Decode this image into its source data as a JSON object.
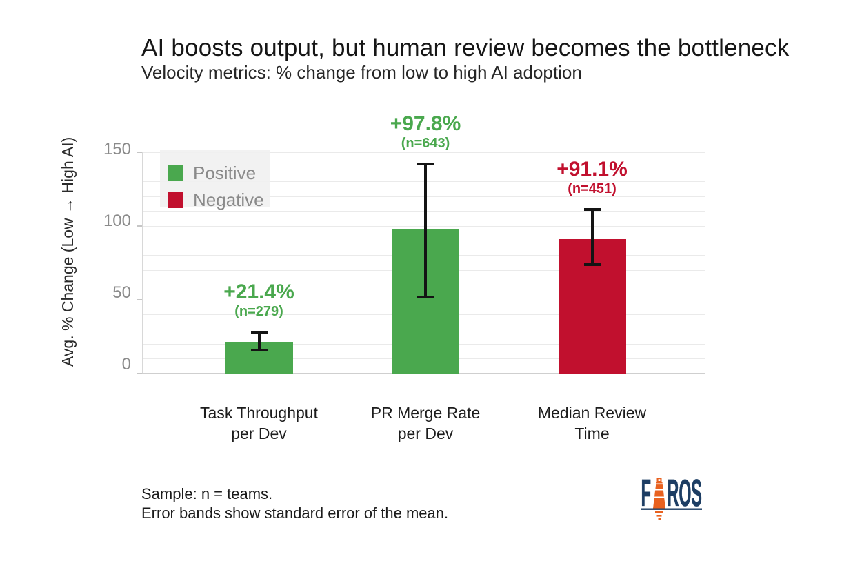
{
  "chart_data": {
    "type": "bar",
    "title": "AI boosts output, but human review becomes the bottleneck",
    "subtitle": "Velocity metrics: % change from low to high AI adoption",
    "ylabel": "Avg. % Change (Low → High AI)",
    "ylim": [
      0,
      150
    ],
    "yticks": [
      0,
      50,
      100,
      150
    ],
    "grid": "horizontal, minor every 10",
    "legend_position": "top-left",
    "legend": [
      {
        "label": "Positive",
        "color": "#4aa84e"
      },
      {
        "label": "Negative",
        "color": "#c1102e"
      }
    ],
    "bars": [
      {
        "category": "Task Throughput per Dev",
        "category_lines": [
          "Task Throughput",
          "per Dev"
        ],
        "value": 21.4,
        "label": "+21.4%",
        "n_label": "(n=279)",
        "n": 279,
        "sentiment": "positive",
        "err_low": 16,
        "err_high": 28
      },
      {
        "category": "PR Merge Rate per Dev",
        "category_lines": [
          "PR Merge Rate",
          "per Dev"
        ],
        "value": 97.8,
        "label": "+97.8%",
        "n_label": "(n=643)",
        "n": 643,
        "sentiment": "positive",
        "err_low": 52,
        "err_high": 142
      },
      {
        "category": "Median Review Time",
        "category_lines": [
          "Median Review",
          "Time"
        ],
        "value": 91.1,
        "label": "+91.1%",
        "n_label": "(n=451)",
        "n": 451,
        "sentiment": "negative",
        "err_low": 74,
        "err_high": 111
      }
    ],
    "colors": {
      "positive": "#4aa84e",
      "negative": "#c1102e"
    },
    "footnote_lines": [
      "Sample: n = teams.",
      "Error bands show standard error of the mean."
    ]
  },
  "logo": {
    "text": "FAROS",
    "navy": "#1c3d63",
    "orange": "#e8611f"
  }
}
